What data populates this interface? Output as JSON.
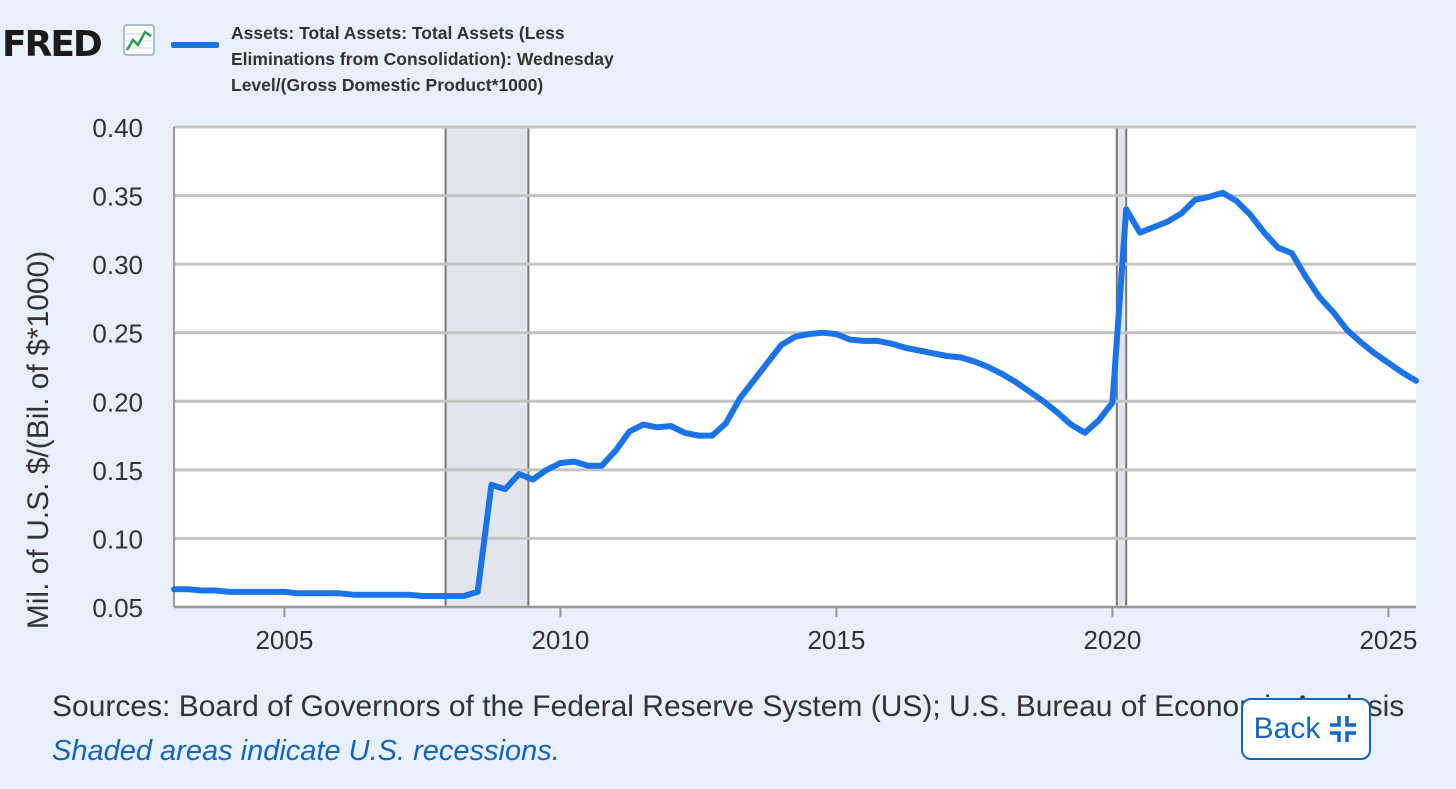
{
  "header": {
    "logo_text": "FRED",
    "logo_icon": "line-chart-icon",
    "legend_label": "Assets: Total Assets: Total Assets (Less Eliminations from Consolidation): Wednesday Level/(Gross Domestic Product*1000)",
    "series_color": "#1a73e8"
  },
  "chart_data": {
    "type": "line",
    "title": "",
    "ylabel": "Mil. of U.S. $/(Bil. of $*1000)",
    "xlabel": "",
    "xlim": [
      2003.0,
      2025.5
    ],
    "ylim": [
      0.05,
      0.4
    ],
    "x_ticks": [
      "2005",
      "2010",
      "2015",
      "2020",
      "2025"
    ],
    "y_ticks": [
      "0.05",
      "0.10",
      "0.15",
      "0.20",
      "0.25",
      "0.30",
      "0.35",
      "0.40"
    ],
    "grid": true,
    "recession_bands": [
      {
        "start": 2007.92,
        "end": 2009.42
      },
      {
        "start": 2020.08,
        "end": 2020.25
      }
    ],
    "series": [
      {
        "name": "Assets: Total Assets: Total Assets (Less Eliminations from Consolidation): Wednesday Level/(Gross Domestic Product*1000)",
        "color": "#1a73e8",
        "x": [
          2003.0,
          2003.25,
          2003.5,
          2003.75,
          2004.0,
          2004.25,
          2004.5,
          2004.75,
          2005.0,
          2005.25,
          2005.5,
          2005.75,
          2006.0,
          2006.25,
          2006.5,
          2006.75,
          2007.0,
          2007.25,
          2007.5,
          2007.75,
          2008.0,
          2008.25,
          2008.5,
          2008.75,
          2009.0,
          2009.25,
          2009.5,
          2009.75,
          2010.0,
          2010.25,
          2010.5,
          2010.75,
          2011.0,
          2011.25,
          2011.5,
          2011.75,
          2012.0,
          2012.25,
          2012.5,
          2012.75,
          2013.0,
          2013.25,
          2013.5,
          2013.75,
          2014.0,
          2014.25,
          2014.5,
          2014.75,
          2015.0,
          2015.25,
          2015.5,
          2015.75,
          2016.0,
          2016.25,
          2016.5,
          2016.75,
          2017.0,
          2017.25,
          2017.5,
          2017.75,
          2018.0,
          2018.25,
          2018.5,
          2018.75,
          2019.0,
          2019.25,
          2019.5,
          2019.75,
          2020.0,
          2020.25,
          2020.5,
          2020.75,
          2021.0,
          2021.25,
          2021.5,
          2021.75,
          2022.0,
          2022.25,
          2022.5,
          2022.75,
          2023.0,
          2023.25,
          2023.5,
          2023.75,
          2024.0,
          2024.25,
          2024.5,
          2024.75,
          2025.0,
          2025.25,
          2025.5
        ],
        "values": [
          0.063,
          0.063,
          0.062,
          0.062,
          0.061,
          0.061,
          0.061,
          0.061,
          0.061,
          0.06,
          0.06,
          0.06,
          0.06,
          0.059,
          0.059,
          0.059,
          0.059,
          0.059,
          0.058,
          0.058,
          0.058,
          0.058,
          0.061,
          0.139,
          0.136,
          0.147,
          0.143,
          0.15,
          0.155,
          0.156,
          0.153,
          0.153,
          0.164,
          0.178,
          0.183,
          0.181,
          0.182,
          0.177,
          0.175,
          0.175,
          0.184,
          0.202,
          0.215,
          0.228,
          0.241,
          0.247,
          0.249,
          0.25,
          0.249,
          0.245,
          0.244,
          0.244,
          0.242,
          0.239,
          0.237,
          0.235,
          0.233,
          0.232,
          0.229,
          0.225,
          0.22,
          0.214,
          0.207,
          0.2,
          0.192,
          0.183,
          0.177,
          0.186,
          0.199,
          0.34,
          0.323,
          0.327,
          0.331,
          0.337,
          0.347,
          0.349,
          0.352,
          0.346,
          0.336,
          0.323,
          0.312,
          0.308,
          0.291,
          0.276,
          0.265,
          0.252,
          0.243,
          0.235,
          0.228,
          0.221,
          0.215
        ]
      }
    ]
  },
  "footer": {
    "sources": "Sources: Board of Governors of the Federal Reserve System (US); U.S. Bureau of Economic Analysis",
    "note": "Shaded areas indicate U.S. recessions.",
    "back_label": "Back",
    "back_icon": "collapse-icon"
  }
}
